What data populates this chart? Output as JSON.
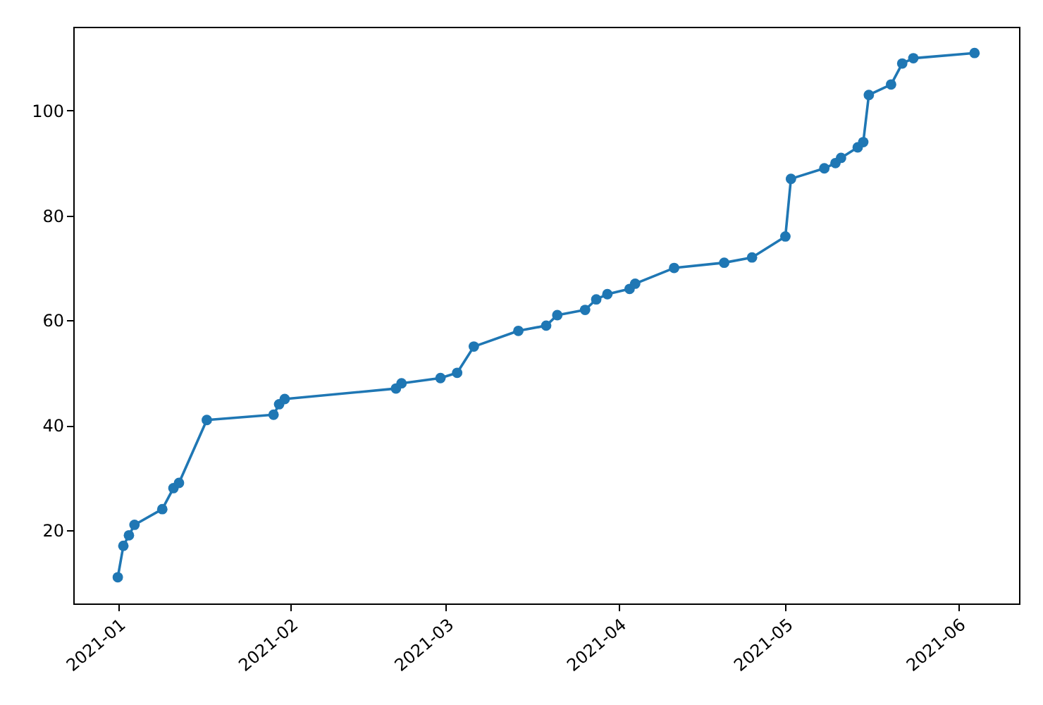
{
  "chart_data": {
    "type": "line",
    "marker": "circle",
    "grid": false,
    "x": [
      "2021-01-01",
      "2021-01-02",
      "2021-01-03",
      "2021-01-04",
      "2021-01-09",
      "2021-01-11",
      "2021-01-12",
      "2021-01-17",
      "2021-01-29",
      "2021-01-30",
      "2021-01-31",
      "2021-02-20",
      "2021-02-21",
      "2021-02-28",
      "2021-03-03",
      "2021-03-06",
      "2021-03-14",
      "2021-03-19",
      "2021-03-21",
      "2021-03-26",
      "2021-03-28",
      "2021-03-30",
      "2021-04-03",
      "2021-04-04",
      "2021-04-11",
      "2021-04-20",
      "2021-04-25",
      "2021-05-01",
      "2021-05-02",
      "2021-05-08",
      "2021-05-10",
      "2021-05-11",
      "2021-05-14",
      "2021-05-15",
      "2021-05-16",
      "2021-05-20",
      "2021-05-22",
      "2021-05-24",
      "2021-06-04"
    ],
    "series": [
      {
        "color": "#1f77b4",
        "values": [
          11,
          17,
          19,
          21,
          24,
          28,
          29,
          41,
          42,
          44,
          45,
          47,
          48,
          49,
          50,
          55,
          58,
          59,
          61,
          62,
          64,
          65,
          66,
          67,
          70,
          71,
          72,
          76,
          87,
          89,
          90,
          91,
          93,
          94,
          103,
          105,
          109,
          110,
          111
        ]
      }
    ],
    "xlim": [
      "2020-12-24",
      "2021-06-12"
    ],
    "xticks": [
      {
        "value": "2021-01-01",
        "label": "2021-01"
      },
      {
        "value": "2021-02-01",
        "label": "2021-02"
      },
      {
        "value": "2021-03-01",
        "label": "2021-03"
      },
      {
        "value": "2021-04-01",
        "label": "2021-04"
      },
      {
        "value": "2021-05-01",
        "label": "2021-05"
      },
      {
        "value": "2021-06-01",
        "label": "2021-06"
      }
    ],
    "ylim": [
      6,
      116
    ],
    "yticks": [
      20,
      40,
      60,
      80,
      100
    ]
  }
}
